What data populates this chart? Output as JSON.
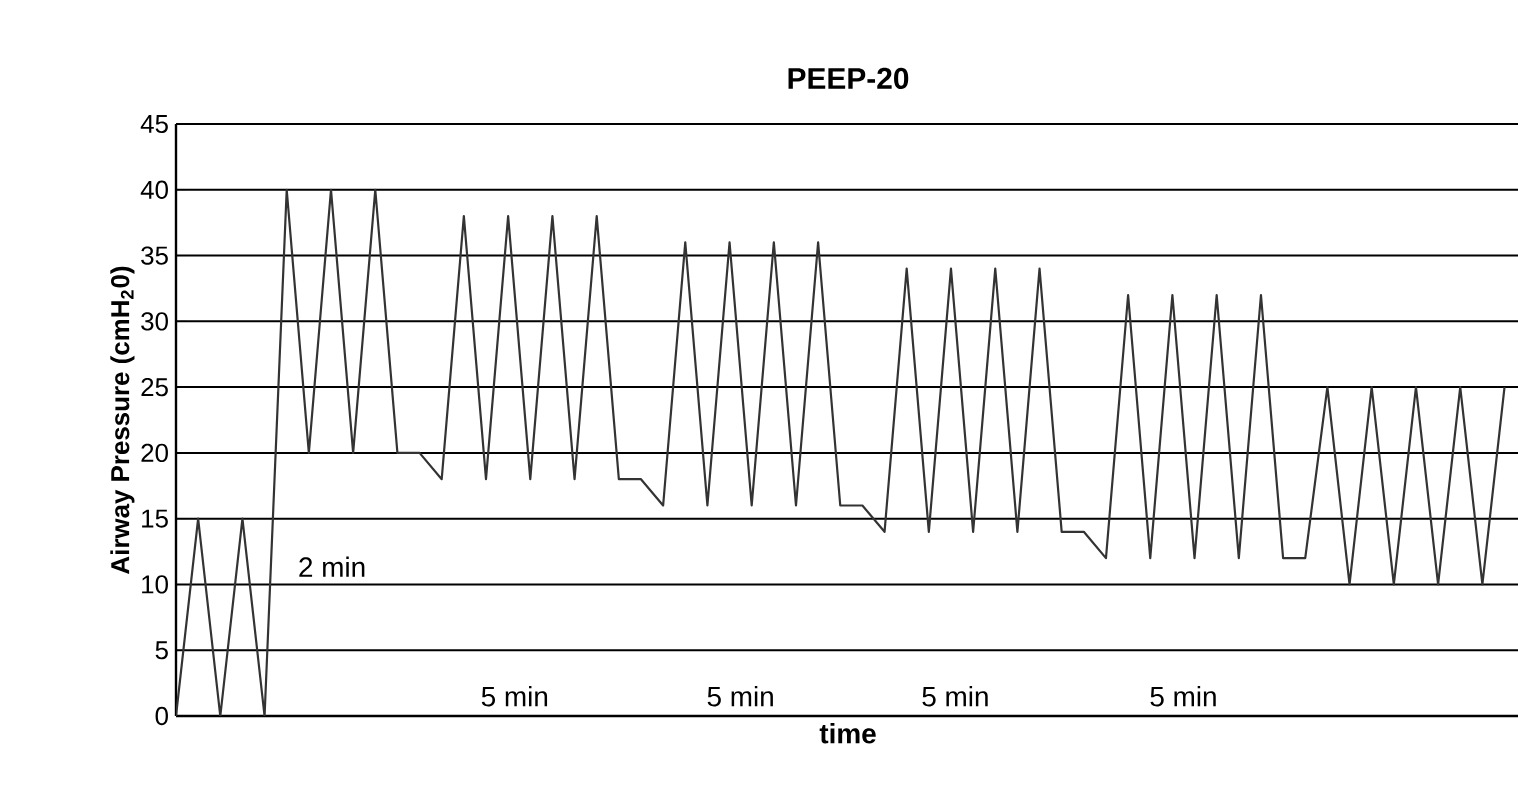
{
  "chart_data": {
    "type": "line",
    "title": "PEEP-20",
    "xlabel": "time",
    "ylabel": "Airway Pressure (cmH$_{2}$0)",
    "categories": [
      null,
      null,
      null,
      null,
      null,
      null,
      null,
      null,
      null,
      null,
      null,
      null,
      null,
      null,
      null,
      null,
      null,
      null,
      null,
      null,
      null,
      null,
      null,
      null,
      null,
      null,
      null,
      null,
      null,
      null,
      null,
      null,
      null,
      null,
      null,
      null,
      null,
      null,
      null,
      null,
      null,
      null,
      null,
      null,
      null,
      null,
      null,
      null,
      null,
      null,
      null,
      null,
      null,
      null,
      null,
      null,
      null,
      null,
      null,
      null,
      null
    ],
    "series": [
      {
        "color": "#333333",
        "values": [
          0,
          15,
          0,
          15,
          0,
          40,
          20,
          40,
          20,
          40,
          20,
          20,
          18,
          38,
          18,
          38,
          18,
          38,
          18,
          38,
          18,
          18,
          16,
          36,
          16,
          36,
          16,
          36,
          16,
          36,
          16,
          16,
          14,
          34,
          14,
          34,
          14,
          34,
          14,
          34,
          14,
          14,
          12,
          32,
          12,
          32,
          12,
          32,
          12,
          32,
          12,
          12,
          25,
          10,
          25,
          10,
          25,
          10,
          25,
          10,
          25
        ]
      }
    ],
    "ylim": [
      0,
      45
    ],
    "yticks": [
      0,
      5,
      10,
      15,
      20,
      25,
      30,
      35,
      40,
      45
    ],
    "tick_labels": "y",
    "grid": "y",
    "marker": "none",
    "line_style": "solid",
    "annotations": [
      "2 min",
      "5 min",
      "5 min",
      "5 min",
      "5 min"
    ]
  }
}
